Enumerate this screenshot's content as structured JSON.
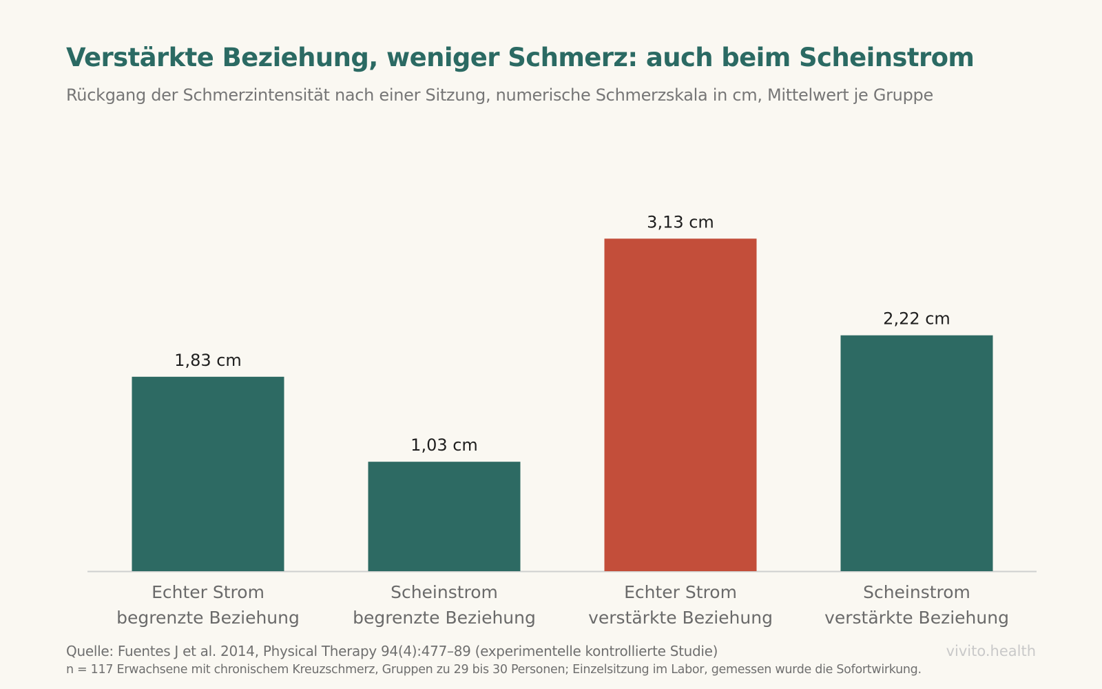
{
  "header": {
    "title": "Verstärkte Beziehung, weniger Schmerz: auch beim Scheinstrom",
    "subtitle": "Rückgang der Schmerzintensität nach einer Sitzung, numerische Schmerzskala in cm, Mittelwert je Gruppe"
  },
  "footer": {
    "source": "Quelle: Fuentes J et al. 2014, Physical Therapy 94(4):477–89 (experimentelle kontrollierte Studie)",
    "note": "n = 117 Erwachsene mit chronischem Kreuzschmerz, Gruppen zu 29 bis 30 Personen; Einzelsitzung im Labor, gemessen wurde die Sofortwirkung.",
    "brand": "vivito.health"
  },
  "colors": {
    "background": "#faf8f2",
    "bar_default": "#2d6a63",
    "bar_highlight": "#c34e3a",
    "axis": "#cfcfcf",
    "value_label": "#1e1e1e",
    "category_label": "#6a6a6a"
  },
  "chart_data": {
    "type": "bar",
    "categories": [
      [
        "Echter Strom",
        "begrenzte Beziehung"
      ],
      [
        "Scheinstrom",
        "begrenzte Beziehung"
      ],
      [
        "Echter Strom",
        "verstärkte Beziehung"
      ],
      [
        "Scheinstrom",
        "verstärkte Beziehung"
      ]
    ],
    "values": [
      1.83,
      1.03,
      3.13,
      2.22
    ],
    "value_labels": [
      "1,83 cm",
      "1,03 cm",
      "3,13 cm",
      "2,22 cm"
    ],
    "highlight_index": 2,
    "ylim": [
      0,
      3.3
    ],
    "grid": false,
    "legend": "none"
  }
}
